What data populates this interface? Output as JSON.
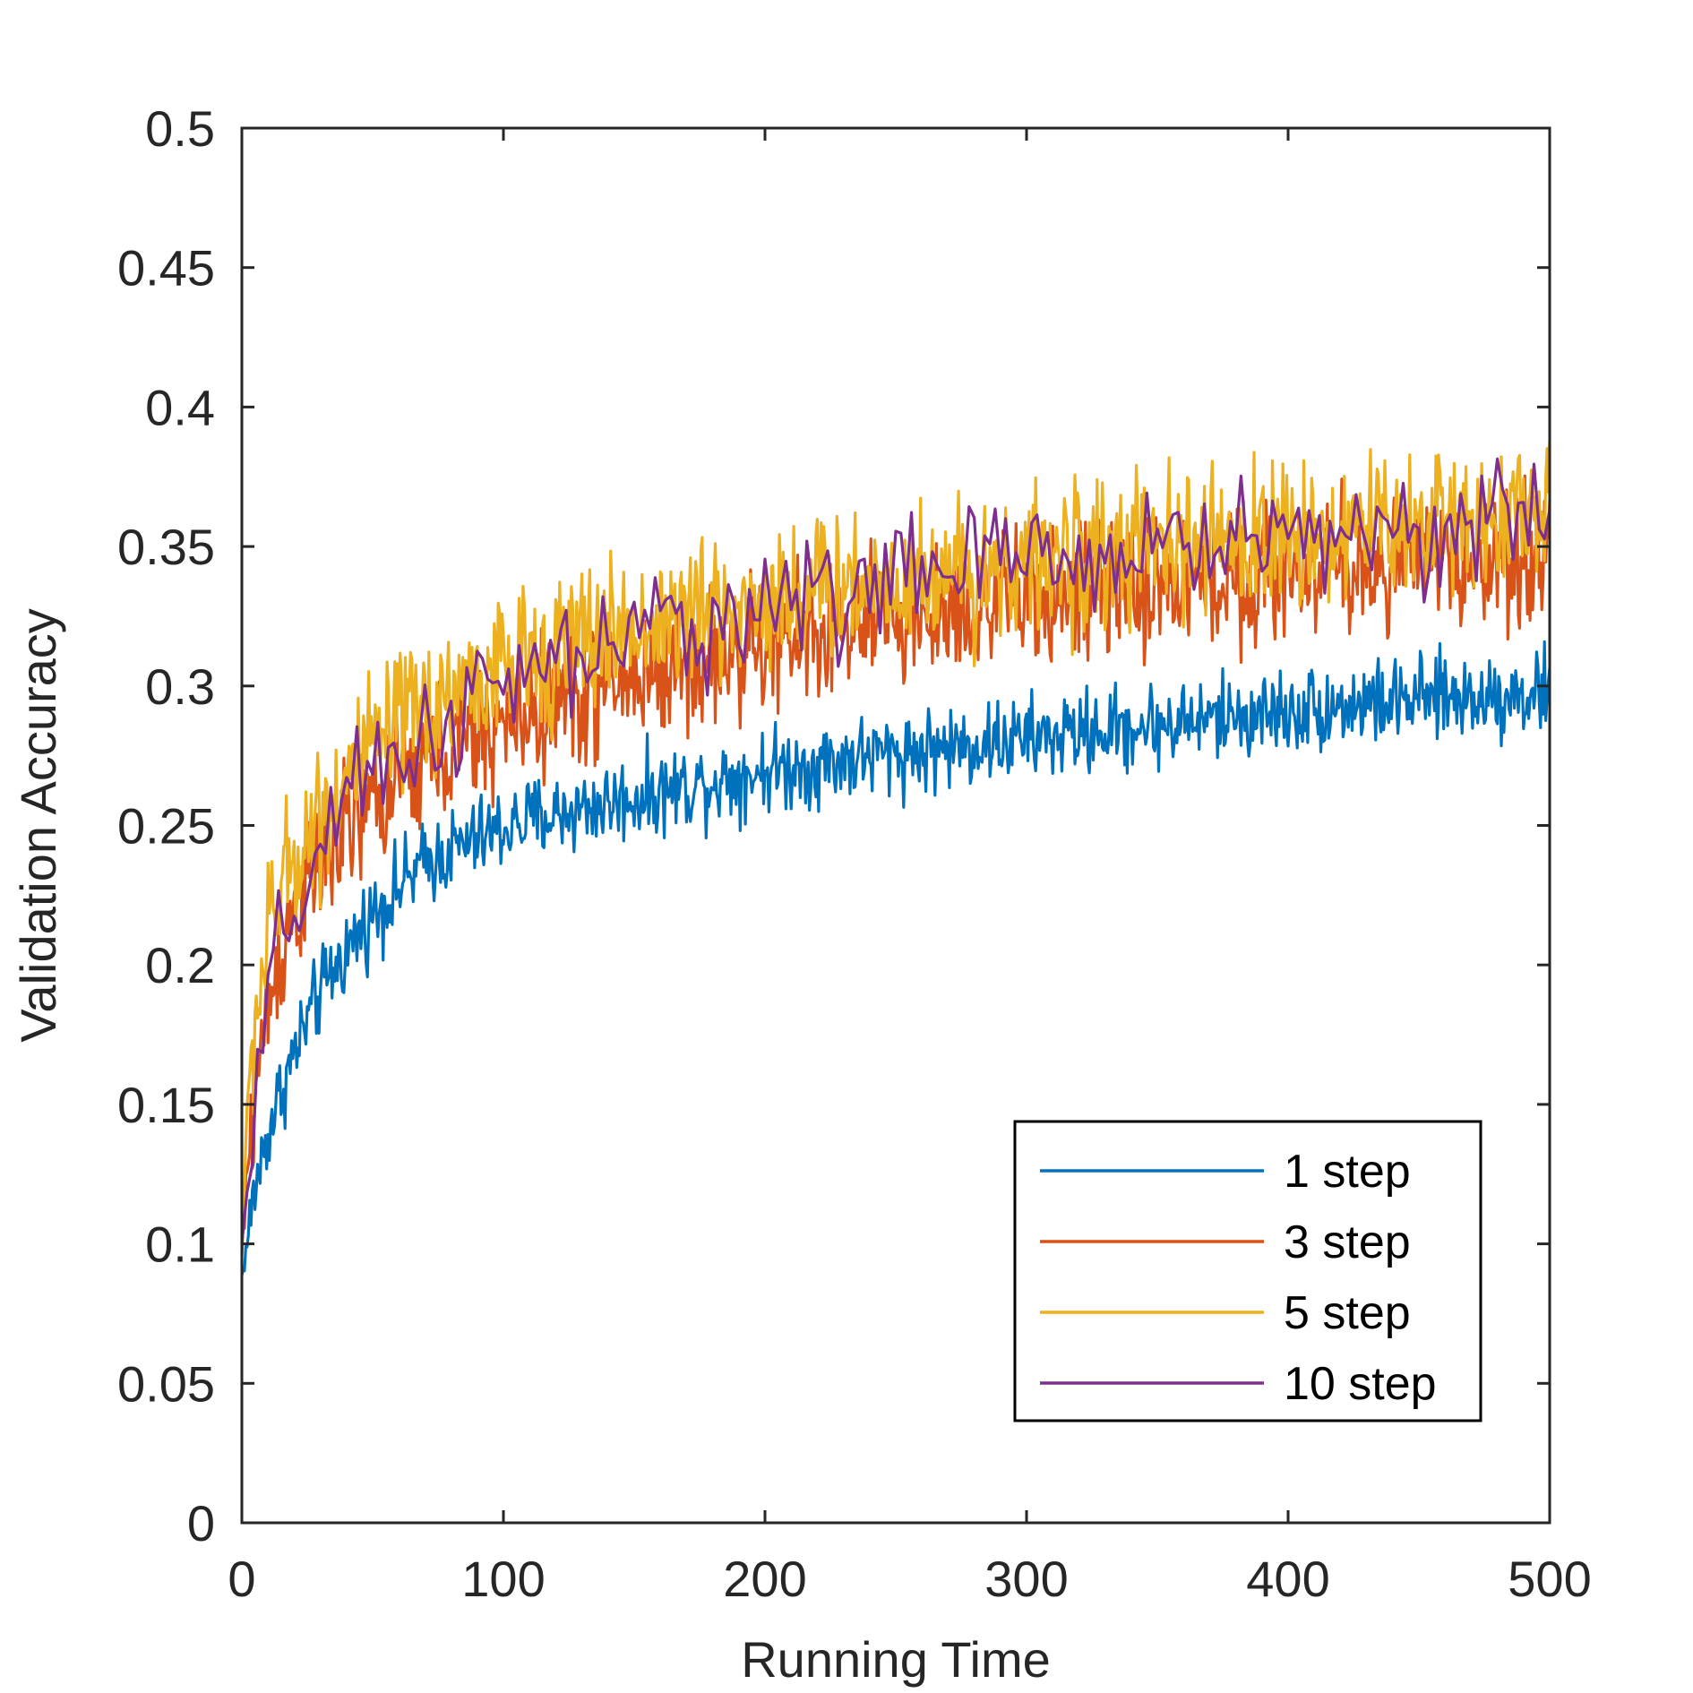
{
  "chart_data": {
    "type": "line",
    "title": "",
    "xlabel": "Running Time",
    "ylabel": "Validation Accuracy",
    "xlim": [
      0,
      500
    ],
    "ylim": [
      0,
      0.5
    ],
    "xticks": [
      0,
      100,
      200,
      300,
      400,
      500
    ],
    "xtick_labels": [
      "0",
      "100",
      "200",
      "300",
      "400",
      "500"
    ],
    "yticks": [
      0,
      0.05,
      0.1,
      0.15,
      0.2,
      0.25,
      0.3,
      0.35,
      0.4,
      0.45,
      0.5
    ],
    "ytick_labels": [
      "0",
      "0.05",
      "0.1",
      "0.15",
      "0.2",
      "0.25",
      "0.3",
      "0.35",
      "0.4",
      "0.45",
      "0.5"
    ],
    "grid": false,
    "legend_position": "bottom-right",
    "series": [
      {
        "name": "1 step",
        "color": "#0072BD",
        "x": [
          0,
          2,
          5,
          10,
          15,
          20,
          25,
          30,
          35,
          40,
          45,
          50,
          55,
          60,
          65,
          70,
          75,
          80,
          85,
          90,
          95,
          100,
          110,
          120,
          130,
          140,
          150,
          160,
          170,
          180,
          190,
          200,
          210,
          220,
          230,
          240,
          250,
          260,
          270,
          280,
          290,
          300,
          310,
          320,
          330,
          340,
          350,
          360,
          370,
          380,
          390,
          400,
          410,
          420,
          430,
          440,
          450,
          460,
          470,
          480,
          490,
          500
        ],
        "y": [
          0.088,
          0.1,
          0.12,
          0.14,
          0.155,
          0.168,
          0.18,
          0.19,
          0.198,
          0.205,
          0.212,
          0.218,
          0.223,
          0.228,
          0.232,
          0.236,
          0.239,
          0.241,
          0.243,
          0.245,
          0.247,
          0.249,
          0.252,
          0.254,
          0.256,
          0.258,
          0.26,
          0.262,
          0.264,
          0.266,
          0.268,
          0.27,
          0.271,
          0.272,
          0.274,
          0.275,
          0.276,
          0.277,
          0.278,
          0.279,
          0.28,
          0.281,
          0.282,
          0.283,
          0.284,
          0.285,
          0.286,
          0.287,
          0.288,
          0.289,
          0.29,
          0.291,
          0.292,
          0.293,
          0.294,
          0.294,
          0.295,
          0.296,
          0.296,
          0.297,
          0.297,
          0.298
        ]
      },
      {
        "name": "3 step",
        "color": "#D95319",
        "x": [
          0,
          2,
          5,
          10,
          15,
          20,
          25,
          30,
          35,
          40,
          45,
          50,
          55,
          60,
          65,
          70,
          75,
          80,
          85,
          90,
          95,
          100,
          110,
          120,
          130,
          140,
          150,
          160,
          170,
          180,
          190,
          200,
          210,
          220,
          230,
          240,
          250,
          260,
          270,
          280,
          290,
          300,
          310,
          320,
          330,
          340,
          350,
          360,
          370,
          380,
          390,
          400,
          410,
          420,
          430,
          440,
          450,
          460,
          470,
          480,
          490,
          500
        ],
        "y": [
          0.095,
          0.125,
          0.155,
          0.185,
          0.205,
          0.22,
          0.228,
          0.236,
          0.242,
          0.248,
          0.253,
          0.258,
          0.262,
          0.266,
          0.27,
          0.272,
          0.275,
          0.277,
          0.28,
          0.282,
          0.284,
          0.286,
          0.29,
          0.294,
          0.297,
          0.3,
          0.303,
          0.306,
          0.308,
          0.31,
          0.312,
          0.314,
          0.316,
          0.318,
          0.32,
          0.322,
          0.324,
          0.325,
          0.327,
          0.328,
          0.33,
          0.331,
          0.332,
          0.333,
          0.334,
          0.335,
          0.336,
          0.337,
          0.338,
          0.339,
          0.34,
          0.341,
          0.342,
          0.342,
          0.343,
          0.344,
          0.345,
          0.345,
          0.346,
          0.347,
          0.347,
          0.348
        ]
      },
      {
        "name": "5 step",
        "color": "#EDB120",
        "x": [
          0,
          2,
          5,
          10,
          15,
          20,
          25,
          30,
          35,
          40,
          45,
          50,
          55,
          60,
          65,
          70,
          75,
          80,
          85,
          90,
          95,
          100,
          110,
          120,
          130,
          140,
          150,
          160,
          170,
          180,
          190,
          200,
          210,
          220,
          230,
          240,
          250,
          260,
          270,
          280,
          290,
          300,
          310,
          320,
          330,
          340,
          350,
          360,
          370,
          380,
          390,
          400,
          410,
          420,
          430,
          440,
          450,
          460,
          470,
          480,
          490,
          500
        ],
        "y": [
          0.1,
          0.145,
          0.18,
          0.21,
          0.228,
          0.238,
          0.247,
          0.254,
          0.261,
          0.267,
          0.272,
          0.277,
          0.281,
          0.285,
          0.289,
          0.292,
          0.295,
          0.298,
          0.3,
          0.302,
          0.304,
          0.306,
          0.31,
          0.313,
          0.316,
          0.319,
          0.321,
          0.323,
          0.325,
          0.327,
          0.329,
          0.331,
          0.333,
          0.334,
          0.336,
          0.337,
          0.339,
          0.34,
          0.341,
          0.342,
          0.343,
          0.344,
          0.345,
          0.346,
          0.347,
          0.348,
          0.349,
          0.35,
          0.351,
          0.352,
          0.353,
          0.354,
          0.355,
          0.356,
          0.357,
          0.358,
          0.359,
          0.36,
          0.361,
          0.362,
          0.363,
          0.364
        ]
      },
      {
        "name": "10 step",
        "color": "#7E2F8E",
        "x": [
          0,
          5,
          8,
          10,
          13,
          16,
          20,
          25,
          30,
          35,
          40,
          45,
          50,
          55,
          60,
          65,
          70,
          75,
          80,
          85,
          90,
          95,
          100,
          110,
          120,
          130,
          140,
          150,
          160,
          170,
          180,
          190,
          200,
          210,
          220,
          230,
          240,
          250,
          260,
          270,
          280,
          290,
          300,
          310,
          320,
          330,
          340,
          350,
          360,
          370,
          380,
          390,
          400,
          410,
          420,
          430,
          440,
          450,
          460,
          470,
          480,
          490,
          500
        ],
        "y": [
          0.1,
          0.14,
          0.17,
          0.185,
          0.2,
          0.21,
          0.22,
          0.232,
          0.24,
          0.248,
          0.255,
          0.261,
          0.266,
          0.271,
          0.275,
          0.279,
          0.283,
          0.286,
          0.289,
          0.292,
          0.295,
          0.297,
          0.299,
          0.303,
          0.307,
          0.311,
          0.314,
          0.317,
          0.32,
          0.322,
          0.324,
          0.327,
          0.329,
          0.331,
          0.333,
          0.335,
          0.337,
          0.339,
          0.341,
          0.342,
          0.343,
          0.344,
          0.345,
          0.346,
          0.347,
          0.348,
          0.349,
          0.35,
          0.351,
          0.352,
          0.353,
          0.354,
          0.355,
          0.355,
          0.356,
          0.356,
          0.357,
          0.357,
          0.358,
          0.358,
          0.359,
          0.359,
          0.36
        ]
      }
    ]
  }
}
